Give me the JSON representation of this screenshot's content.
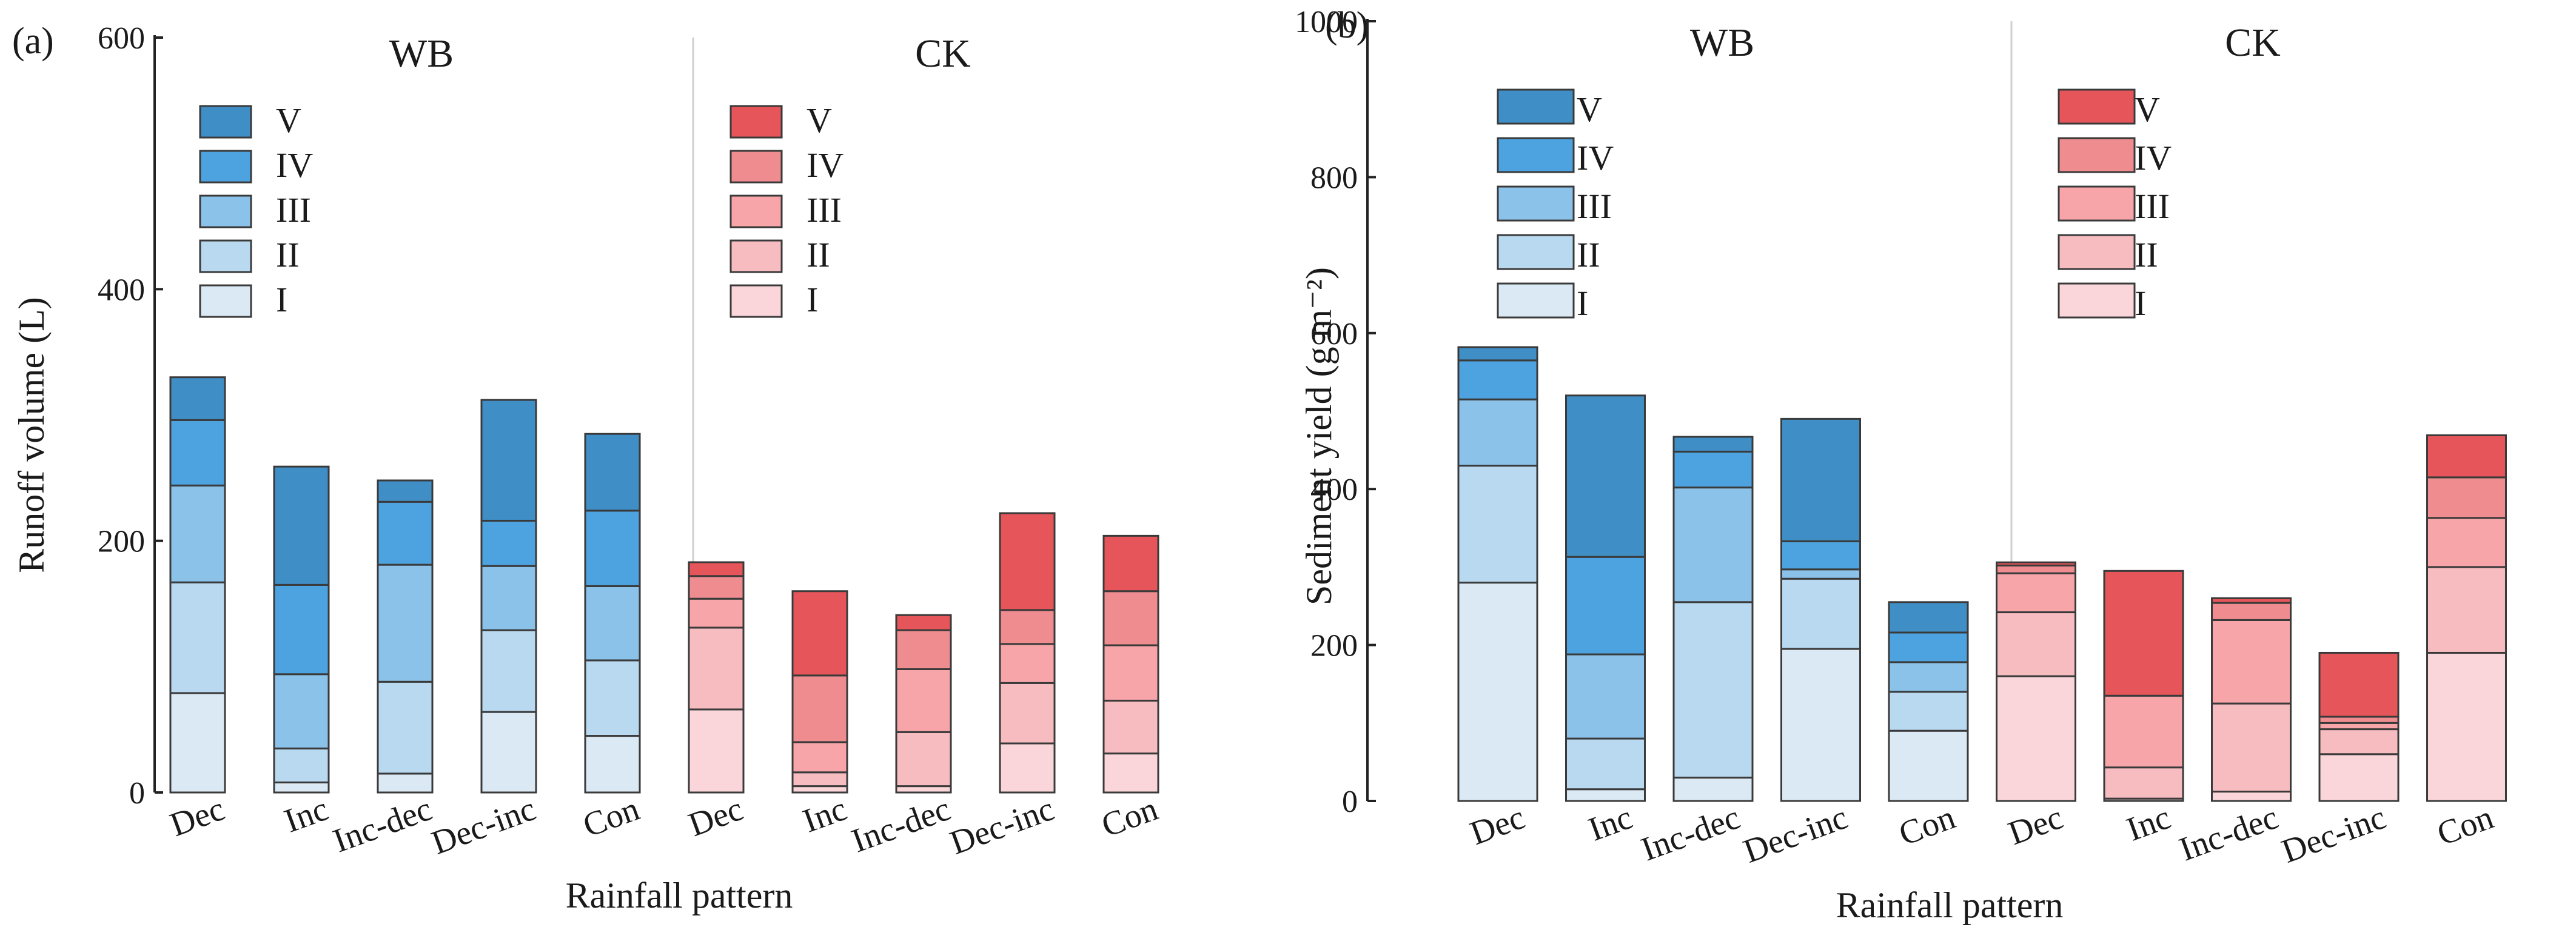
{
  "figure": {
    "panels": [
      {
        "label": "(a)",
        "xlabel": "Rainfall pattern",
        "ylabel": "Runoff volume (L)"
      },
      {
        "label": "(b)",
        "xlabel": "Rainfall pattern",
        "ylabel": "Sediment yield (g m⁻²)"
      }
    ],
    "group_labels": [
      "WB",
      "CK"
    ],
    "legend_labels": [
      "V",
      "IV",
      "III",
      "II",
      "I"
    ]
  },
  "colors": {
    "WB": [
      "#dbe9f4",
      "#b8d9f0",
      "#8ac2ea",
      "#4da3e0",
      "#3f8ec6"
    ],
    "CK": [
      "#fad6da",
      "#f7bcc0",
      "#f7a5a9",
      "#ef8c8f",
      "#e65559"
    ]
  },
  "chart_data": [
    {
      "type": "bar",
      "stacked": true,
      "title": "(a)",
      "xlabel": "Rainfall pattern",
      "ylabel": "Runoff volume (L)",
      "ylim": [
        0,
        600
      ],
      "yticks": [
        0,
        200,
        400,
        600
      ],
      "categories": [
        "Dec",
        "Inc",
        "Inc-dec",
        "Dec-inc",
        "Con",
        "Dec",
        "Inc",
        "Inc-dec",
        "Dec-inc",
        "Con"
      ],
      "groups": [
        {
          "name": "WB",
          "categories": [
            "Dec",
            "Inc",
            "Inc-dec",
            "Dec-inc",
            "Con"
          ]
        },
        {
          "name": "CK",
          "categories": [
            "Dec",
            "Inc",
            "Inc-dec",
            "Dec-inc",
            "Con"
          ]
        }
      ],
      "series": [
        {
          "name": "I",
          "values": [
            79,
            8,
            15,
            64,
            45,
            66,
            5,
            5,
            39,
            31
          ]
        },
        {
          "name": "II",
          "values": [
            88,
            27,
            73,
            65,
            60,
            65,
            11,
            43,
            48,
            42
          ]
        },
        {
          "name": "III",
          "values": [
            77,
            59,
            93,
            51,
            59,
            23,
            24,
            50,
            31,
            44
          ]
        },
        {
          "name": "IV",
          "values": [
            52,
            71,
            50,
            36,
            60,
            18,
            53,
            31,
            27,
            43
          ]
        },
        {
          "name": "V",
          "values": [
            34,
            94,
            17,
            96,
            61,
            11,
            67,
            12,
            77,
            44
          ]
        }
      ]
    },
    {
      "type": "bar",
      "stacked": true,
      "title": "(b)",
      "xlabel": "Rainfall pattern",
      "ylabel": "Sediment yield (g m⁻²)",
      "ylim": [
        0,
        1000
      ],
      "yticks": [
        0,
        200,
        400,
        600,
        800,
        1000
      ],
      "categories": [
        "Dec",
        "Inc",
        "Inc-dec",
        "Dec-inc",
        "Con",
        "Dec",
        "Inc",
        "Inc-dec",
        "Dec-inc",
        "Con"
      ],
      "groups": [
        {
          "name": "WB",
          "categories": [
            "Dec",
            "Inc",
            "Inc-dec",
            "Dec-inc",
            "Con"
          ]
        },
        {
          "name": "CK",
          "categories": [
            "Dec",
            "Inc",
            "Inc-dec",
            "Dec-inc",
            "Con"
          ]
        }
      ],
      "series": [
        {
          "name": "I",
          "values": [
            280,
            15,
            30,
            195,
            90,
            160,
            3,
            12,
            60,
            190
          ]
        },
        {
          "name": "II",
          "values": [
            150,
            65,
            225,
            90,
            50,
            82,
            40,
            113,
            32,
            110
          ]
        },
        {
          "name": "III",
          "values": [
            85,
            108,
            147,
            12,
            38,
            50,
            92,
            107,
            8,
            63
          ]
        },
        {
          "name": "IV",
          "values": [
            50,
            125,
            46,
            36,
            38,
            10,
            0,
            22,
            8,
            52
          ]
        },
        {
          "name": "V",
          "values": [
            17,
            207,
            19,
            157,
            39,
            4,
            160,
            6,
            82,
            54
          ]
        }
      ]
    }
  ]
}
